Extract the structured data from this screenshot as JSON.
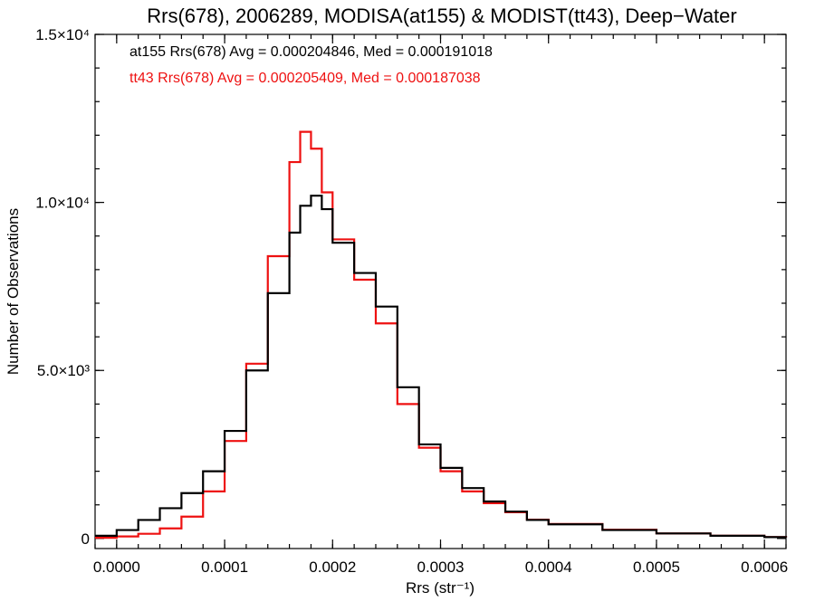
{
  "chart_data": {
    "type": "line",
    "title": "Rrs(678), 2006289, MODISA(at155) & MODIST(tt43), Deep−Water",
    "xlabel": "Rrs (str⁻¹)",
    "ylabel": "Number of Observations",
    "xlim": [
      -2e-05,
      0.00062
    ],
    "ylim": [
      -300,
      15000
    ],
    "x_ticks": [
      {
        "value": 0.0,
        "label": "0.0000"
      },
      {
        "value": 0.0001,
        "label": "0.0001"
      },
      {
        "value": 0.0002,
        "label": "0.0002"
      },
      {
        "value": 0.0003,
        "label": "0.0003"
      },
      {
        "value": 0.0004,
        "label": "0.0004"
      },
      {
        "value": 0.0005,
        "label": "0.0005"
      },
      {
        "value": 0.0006,
        "label": "0.0006"
      }
    ],
    "y_ticks": [
      {
        "value": 0,
        "label": "0"
      },
      {
        "value": 5000,
        "label": "5.0×10³"
      },
      {
        "value": 10000,
        "label": "1.0×10⁴"
      },
      {
        "value": 15000,
        "label": "1.5×10⁴"
      }
    ],
    "grid": false,
    "legend_position": "top-left",
    "series": [
      {
        "name": "at155 Rrs(678) Avg = 0.000204846, Med = 0.000191018",
        "color": "#000000",
        "x": [
          -2e-05,
          0.0,
          2e-05,
          4e-05,
          6e-05,
          8e-05,
          0.0001,
          0.00012,
          0.00014,
          0.00016,
          0.00017,
          0.00018,
          0.00019,
          0.0002,
          0.00022,
          0.00024,
          0.00026,
          0.00028,
          0.0003,
          0.00032,
          0.00034,
          0.00036,
          0.00038,
          0.0004,
          0.00045,
          0.0005,
          0.00055,
          0.0006,
          0.00062
        ],
        "values": [
          80,
          250,
          550,
          900,
          1350,
          2000,
          3200,
          5000,
          7300,
          9100,
          9900,
          10200,
          9800,
          8800,
          7900,
          6900,
          4500,
          2800,
          2100,
          1500,
          1100,
          800,
          550,
          420,
          250,
          150,
          80,
          40,
          30
        ]
      },
      {
        "name": "tt43 Rrs(678) Avg = 0.000205409, Med = 0.000187038",
        "color": "#ee1111",
        "x": [
          -2e-05,
          0.0,
          2e-05,
          4e-05,
          6e-05,
          8e-05,
          0.0001,
          0.00012,
          0.00014,
          0.00016,
          0.00017,
          0.00018,
          0.00019,
          0.0002,
          0.00022,
          0.00024,
          0.00026,
          0.00028,
          0.0003,
          0.00032,
          0.00034,
          0.00036,
          0.00038,
          0.0004,
          0.00045,
          0.0005,
          0.00055,
          0.0006,
          0.00062
        ],
        "values": [
          20,
          60,
          140,
          300,
          650,
          1400,
          2900,
          5200,
          8400,
          11200,
          12100,
          11600,
          10300,
          8900,
          7700,
          6400,
          4000,
          2700,
          2000,
          1400,
          1050,
          780,
          560,
          430,
          260,
          150,
          80,
          40,
          30
        ]
      }
    ]
  }
}
